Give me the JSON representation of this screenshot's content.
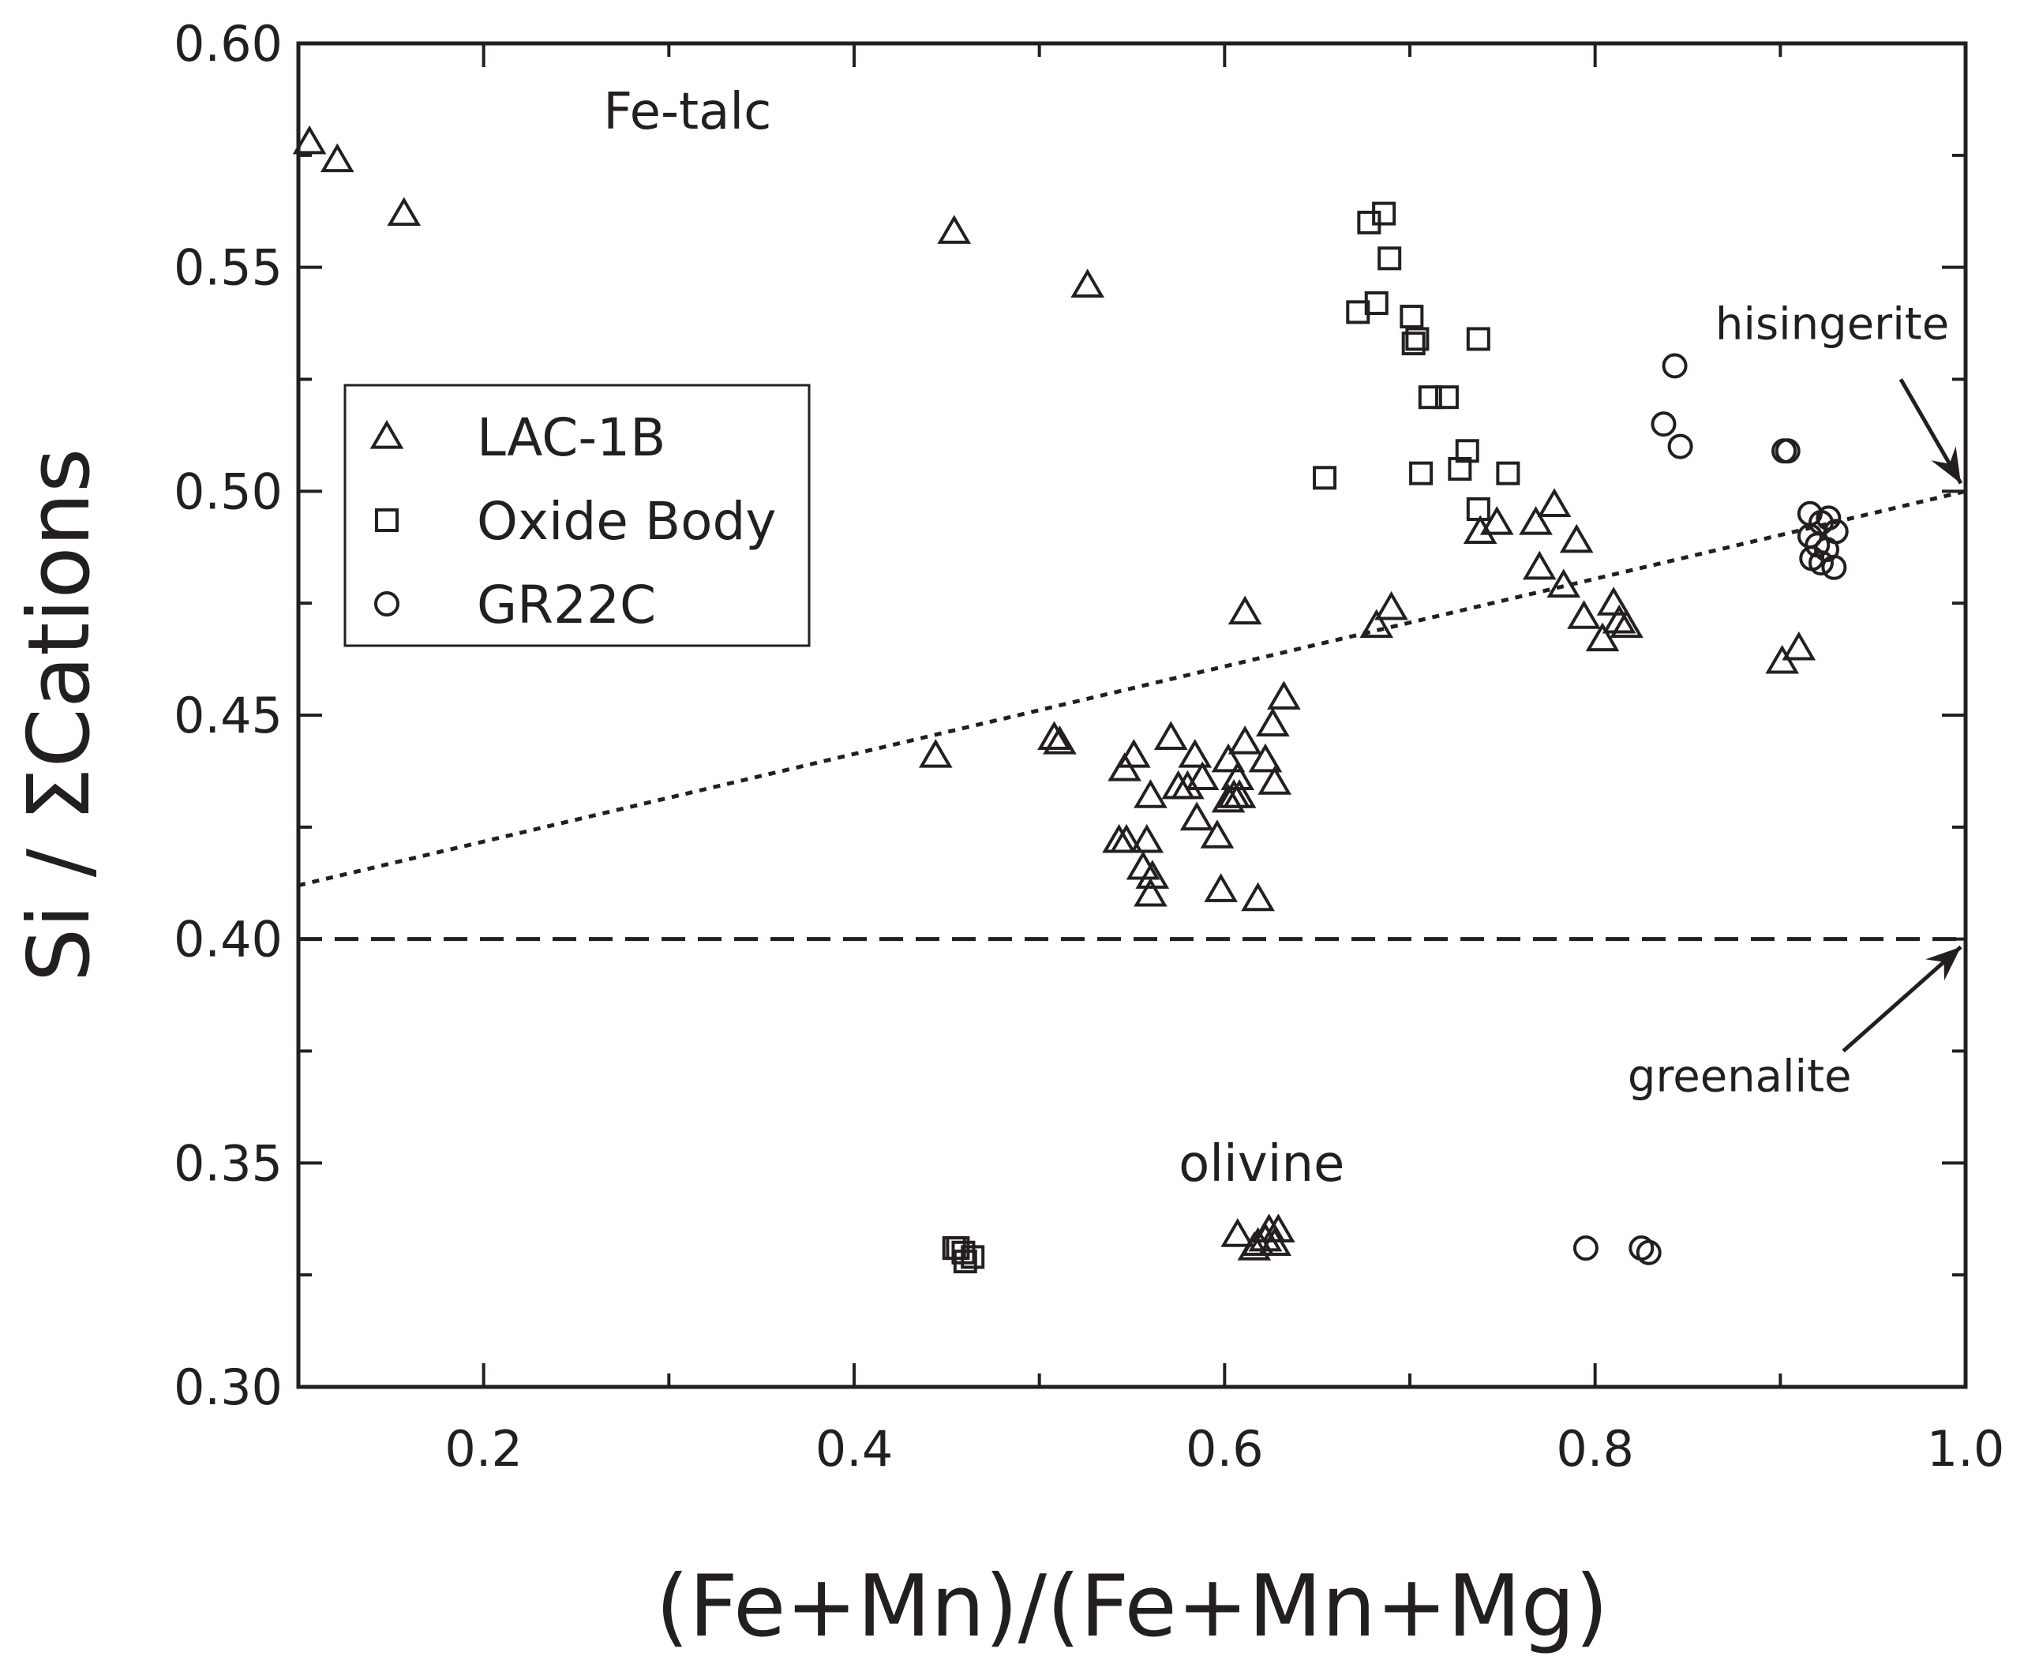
{
  "chart_data": {
    "type": "scatter",
    "xlabel": "(Fe+Mn)/(Fe+Mn+Mg)",
    "ylabel": "Si / ΣCations",
    "xlim": [
      0.1,
      1.0
    ],
    "ylim": [
      0.3,
      0.6
    ],
    "xticks": [
      0.2,
      0.4,
      0.6,
      0.8,
      1.0
    ],
    "xtick_labels": [
      "0.2",
      "0.4",
      "0.6",
      "0.8",
      "1.0"
    ],
    "yticks": [
      0.3,
      0.35,
      0.4,
      0.45,
      0.5,
      0.55,
      0.6
    ],
    "ytick_labels": [
      "0.30",
      "0.35",
      "0.40",
      "0.45",
      "0.50",
      "0.55",
      "0.60"
    ],
    "grid": false,
    "legend_position": "left, upper-middle",
    "colors": {
      "ink": "#231f20",
      "background": "#ffffff"
    },
    "series": [
      {
        "name": "LAC-1B",
        "marker": "triangle",
        "points": [
          [
            0.106,
            0.578
          ],
          [
            0.121,
            0.574
          ],
          [
            0.157,
            0.562
          ],
          [
            0.454,
            0.558
          ],
          [
            0.526,
            0.546
          ],
          [
            0.444,
            0.441
          ],
          [
            0.508,
            0.445
          ],
          [
            0.511,
            0.444
          ],
          [
            0.543,
            0.422
          ],
          [
            0.547,
            0.422
          ],
          [
            0.546,
            0.438
          ],
          [
            0.551,
            0.441
          ],
          [
            0.556,
            0.416
          ],
          [
            0.558,
            0.422
          ],
          [
            0.56,
            0.41
          ],
          [
            0.561,
            0.414
          ],
          [
            0.56,
            0.432
          ],
          [
            0.571,
            0.445
          ],
          [
            0.575,
            0.434
          ],
          [
            0.58,
            0.434
          ],
          [
            0.584,
            0.441
          ],
          [
            0.588,
            0.436
          ],
          [
            0.585,
            0.427
          ],
          [
            0.596,
            0.423
          ],
          [
            0.598,
            0.411
          ],
          [
            0.602,
            0.44
          ],
          [
            0.602,
            0.431
          ],
          [
            0.605,
            0.432
          ],
          [
            0.607,
            0.436
          ],
          [
            0.608,
            0.432
          ],
          [
            0.611,
            0.444
          ],
          [
            0.611,
            0.473
          ],
          [
            0.618,
            0.409
          ],
          [
            0.622,
            0.44
          ],
          [
            0.626,
            0.448
          ],
          [
            0.627,
            0.435
          ],
          [
            0.632,
            0.454
          ],
          [
            0.682,
            0.47
          ],
          [
            0.69,
            0.474
          ],
          [
            0.738,
            0.491
          ],
          [
            0.747,
            0.493
          ],
          [
            0.768,
            0.493
          ],
          [
            0.77,
            0.483
          ],
          [
            0.778,
            0.497
          ],
          [
            0.783,
            0.479
          ],
          [
            0.79,
            0.489
          ],
          [
            0.794,
            0.472
          ],
          [
            0.804,
            0.467
          ],
          [
            0.81,
            0.475
          ],
          [
            0.813,
            0.471
          ],
          [
            0.817,
            0.47
          ],
          [
            0.901,
            0.462
          ],
          [
            0.91,
            0.465
          ],
          [
            0.607,
            0.334
          ],
          [
            0.616,
            0.331
          ],
          [
            0.618,
            0.332
          ],
          [
            0.622,
            0.333
          ],
          [
            0.624,
            0.335
          ],
          [
            0.627,
            0.332
          ],
          [
            0.629,
            0.335
          ]
        ]
      },
      {
        "name": "Oxide Body",
        "marker": "square",
        "points": [
          [
            0.678,
            0.56
          ],
          [
            0.686,
            0.562
          ],
          [
            0.689,
            0.552
          ],
          [
            0.672,
            0.54
          ],
          [
            0.682,
            0.542
          ],
          [
            0.701,
            0.539
          ],
          [
            0.702,
            0.533
          ],
          [
            0.704,
            0.534
          ],
          [
            0.737,
            0.534
          ],
          [
            0.711,
            0.521
          ],
          [
            0.72,
            0.521
          ],
          [
            0.731,
            0.509
          ],
          [
            0.727,
            0.505
          ],
          [
            0.706,
            0.504
          ],
          [
            0.753,
            0.504
          ],
          [
            0.654,
            0.503
          ],
          [
            0.737,
            0.496
          ],
          [
            0.454,
            0.331
          ],
          [
            0.456,
            0.331
          ],
          [
            0.459,
            0.33
          ],
          [
            0.464,
            0.329
          ],
          [
            0.46,
            0.328
          ]
        ]
      },
      {
        "name": "GR22C",
        "marker": "circle",
        "points": [
          [
            0.843,
            0.528
          ],
          [
            0.837,
            0.515
          ],
          [
            0.846,
            0.51
          ],
          [
            0.902,
            0.509
          ],
          [
            0.904,
            0.509
          ],
          [
            0.916,
            0.495
          ],
          [
            0.922,
            0.493
          ],
          [
            0.926,
            0.494
          ],
          [
            0.93,
            0.491
          ],
          [
            0.916,
            0.49
          ],
          [
            0.92,
            0.488
          ],
          [
            0.925,
            0.487
          ],
          [
            0.917,
            0.485
          ],
          [
            0.922,
            0.484
          ],
          [
            0.929,
            0.483
          ],
          [
            0.795,
            0.331
          ],
          [
            0.825,
            0.331
          ],
          [
            0.829,
            0.33
          ]
        ]
      }
    ],
    "lines": [
      {
        "style": "dotted",
        "from": [
          0.1,
          0.412
        ],
        "to": [
          1.0,
          0.5
        ]
      },
      {
        "style": "dashed",
        "from": [
          0.1,
          0.4
        ],
        "to": [
          1.0,
          0.4
        ]
      }
    ],
    "annotations": [
      {
        "text": "Fe-talc",
        "x": 0.31,
        "y": 0.581
      },
      {
        "text": "olivine",
        "x": 0.62,
        "y": 0.346
      },
      {
        "text": "hisingerite",
        "x": 0.928,
        "y": 0.534,
        "arrow_to": [
          1.0,
          0.5
        ]
      },
      {
        "text": "greenalite",
        "x": 0.878,
        "y": 0.366,
        "arrow_to": [
          1.0,
          0.4
        ]
      }
    ]
  }
}
